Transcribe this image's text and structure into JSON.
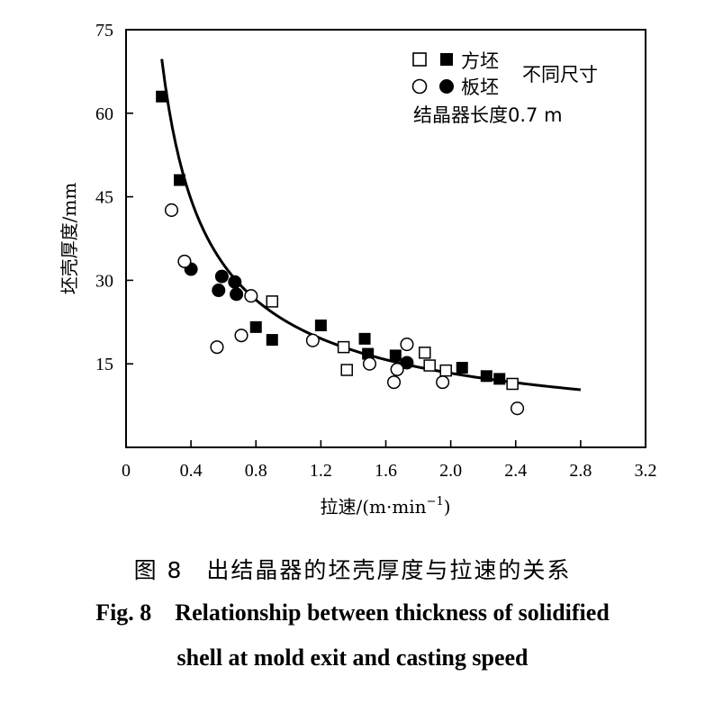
{
  "chart_data": {
    "type": "scatter",
    "xlabel_prefix": "拉速/(m·min",
    "xlabel_sup": "−1",
    "xlabel_suffix": ")",
    "ylabel": "坯壳厚度/mm",
    "xlim": [
      0,
      3.2
    ],
    "ylim": [
      0,
      75
    ],
    "xticks": [
      0,
      0.4,
      0.8,
      1.2,
      1.6,
      2.0,
      2.4,
      2.8,
      3.2
    ],
    "xtick_labels": [
      "0",
      "0.4",
      "0.8",
      "1.2",
      "1.6",
      "2.0",
      "2.4",
      "2.8",
      "3.2"
    ],
    "yticks": [
      15,
      30,
      45,
      60,
      75
    ],
    "ytick_labels": [
      "15",
      "30",
      "45",
      "60",
      "75"
    ],
    "legend": {
      "square_label": "方坯",
      "circle_label": "板坯",
      "group_label": "不同尺寸",
      "note": "结晶器长度0.7 m"
    },
    "series": [
      {
        "name": "方坯 (filled)",
        "marker": "square",
        "filled": true,
        "points": [
          [
            0.22,
            63.0
          ],
          [
            0.33,
            48.0
          ],
          [
            0.8,
            21.6
          ],
          [
            0.9,
            19.3
          ],
          [
            1.2,
            21.9
          ],
          [
            1.47,
            19.5
          ],
          [
            1.49,
            16.8
          ],
          [
            1.66,
            16.5
          ],
          [
            2.07,
            14.3
          ],
          [
            2.22,
            12.8
          ],
          [
            2.3,
            12.3
          ]
        ]
      },
      {
        "name": "方坯 (open)",
        "marker": "square",
        "filled": false,
        "points": [
          [
            0.9,
            26.2
          ],
          [
            1.34,
            18.0
          ],
          [
            1.36,
            13.9
          ],
          [
            1.84,
            17.0
          ],
          [
            1.87,
            14.7
          ],
          [
            1.97,
            13.8
          ],
          [
            2.38,
            11.4
          ]
        ]
      },
      {
        "name": "板坯 (filled)",
        "marker": "circle",
        "filled": true,
        "points": [
          [
            0.4,
            32.0
          ],
          [
            0.57,
            28.2
          ],
          [
            0.59,
            30.7
          ],
          [
            0.67,
            29.7
          ],
          [
            0.68,
            27.5
          ],
          [
            1.73,
            15.2
          ]
        ]
      },
      {
        "name": "板坯 (open)",
        "marker": "circle",
        "filled": false,
        "points": [
          [
            0.28,
            42.6
          ],
          [
            0.36,
            33.4
          ],
          [
            0.56,
            18.0
          ],
          [
            0.71,
            20.1
          ],
          [
            0.77,
            27.2
          ],
          [
            1.15,
            19.2
          ],
          [
            1.5,
            15.0
          ],
          [
            1.65,
            11.7
          ],
          [
            1.67,
            14.0
          ],
          [
            1.73,
            18.5
          ],
          [
            1.95,
            11.7
          ],
          [
            2.41,
            7.0
          ]
        ]
      }
    ],
    "fit_curve": {
      "type": "power",
      "coefficient": 22.4,
      "exponent": -0.75,
      "x_range": [
        0.22,
        2.8
      ]
    }
  },
  "caption": {
    "zh_num": "图 8",
    "zh_text": "出结晶器的坯壳厚度与拉速的关系",
    "en_num": "Fig. 8",
    "en_line1": "Relationship between thickness of solidified",
    "en_line2": "shell at mold exit and casting speed"
  }
}
